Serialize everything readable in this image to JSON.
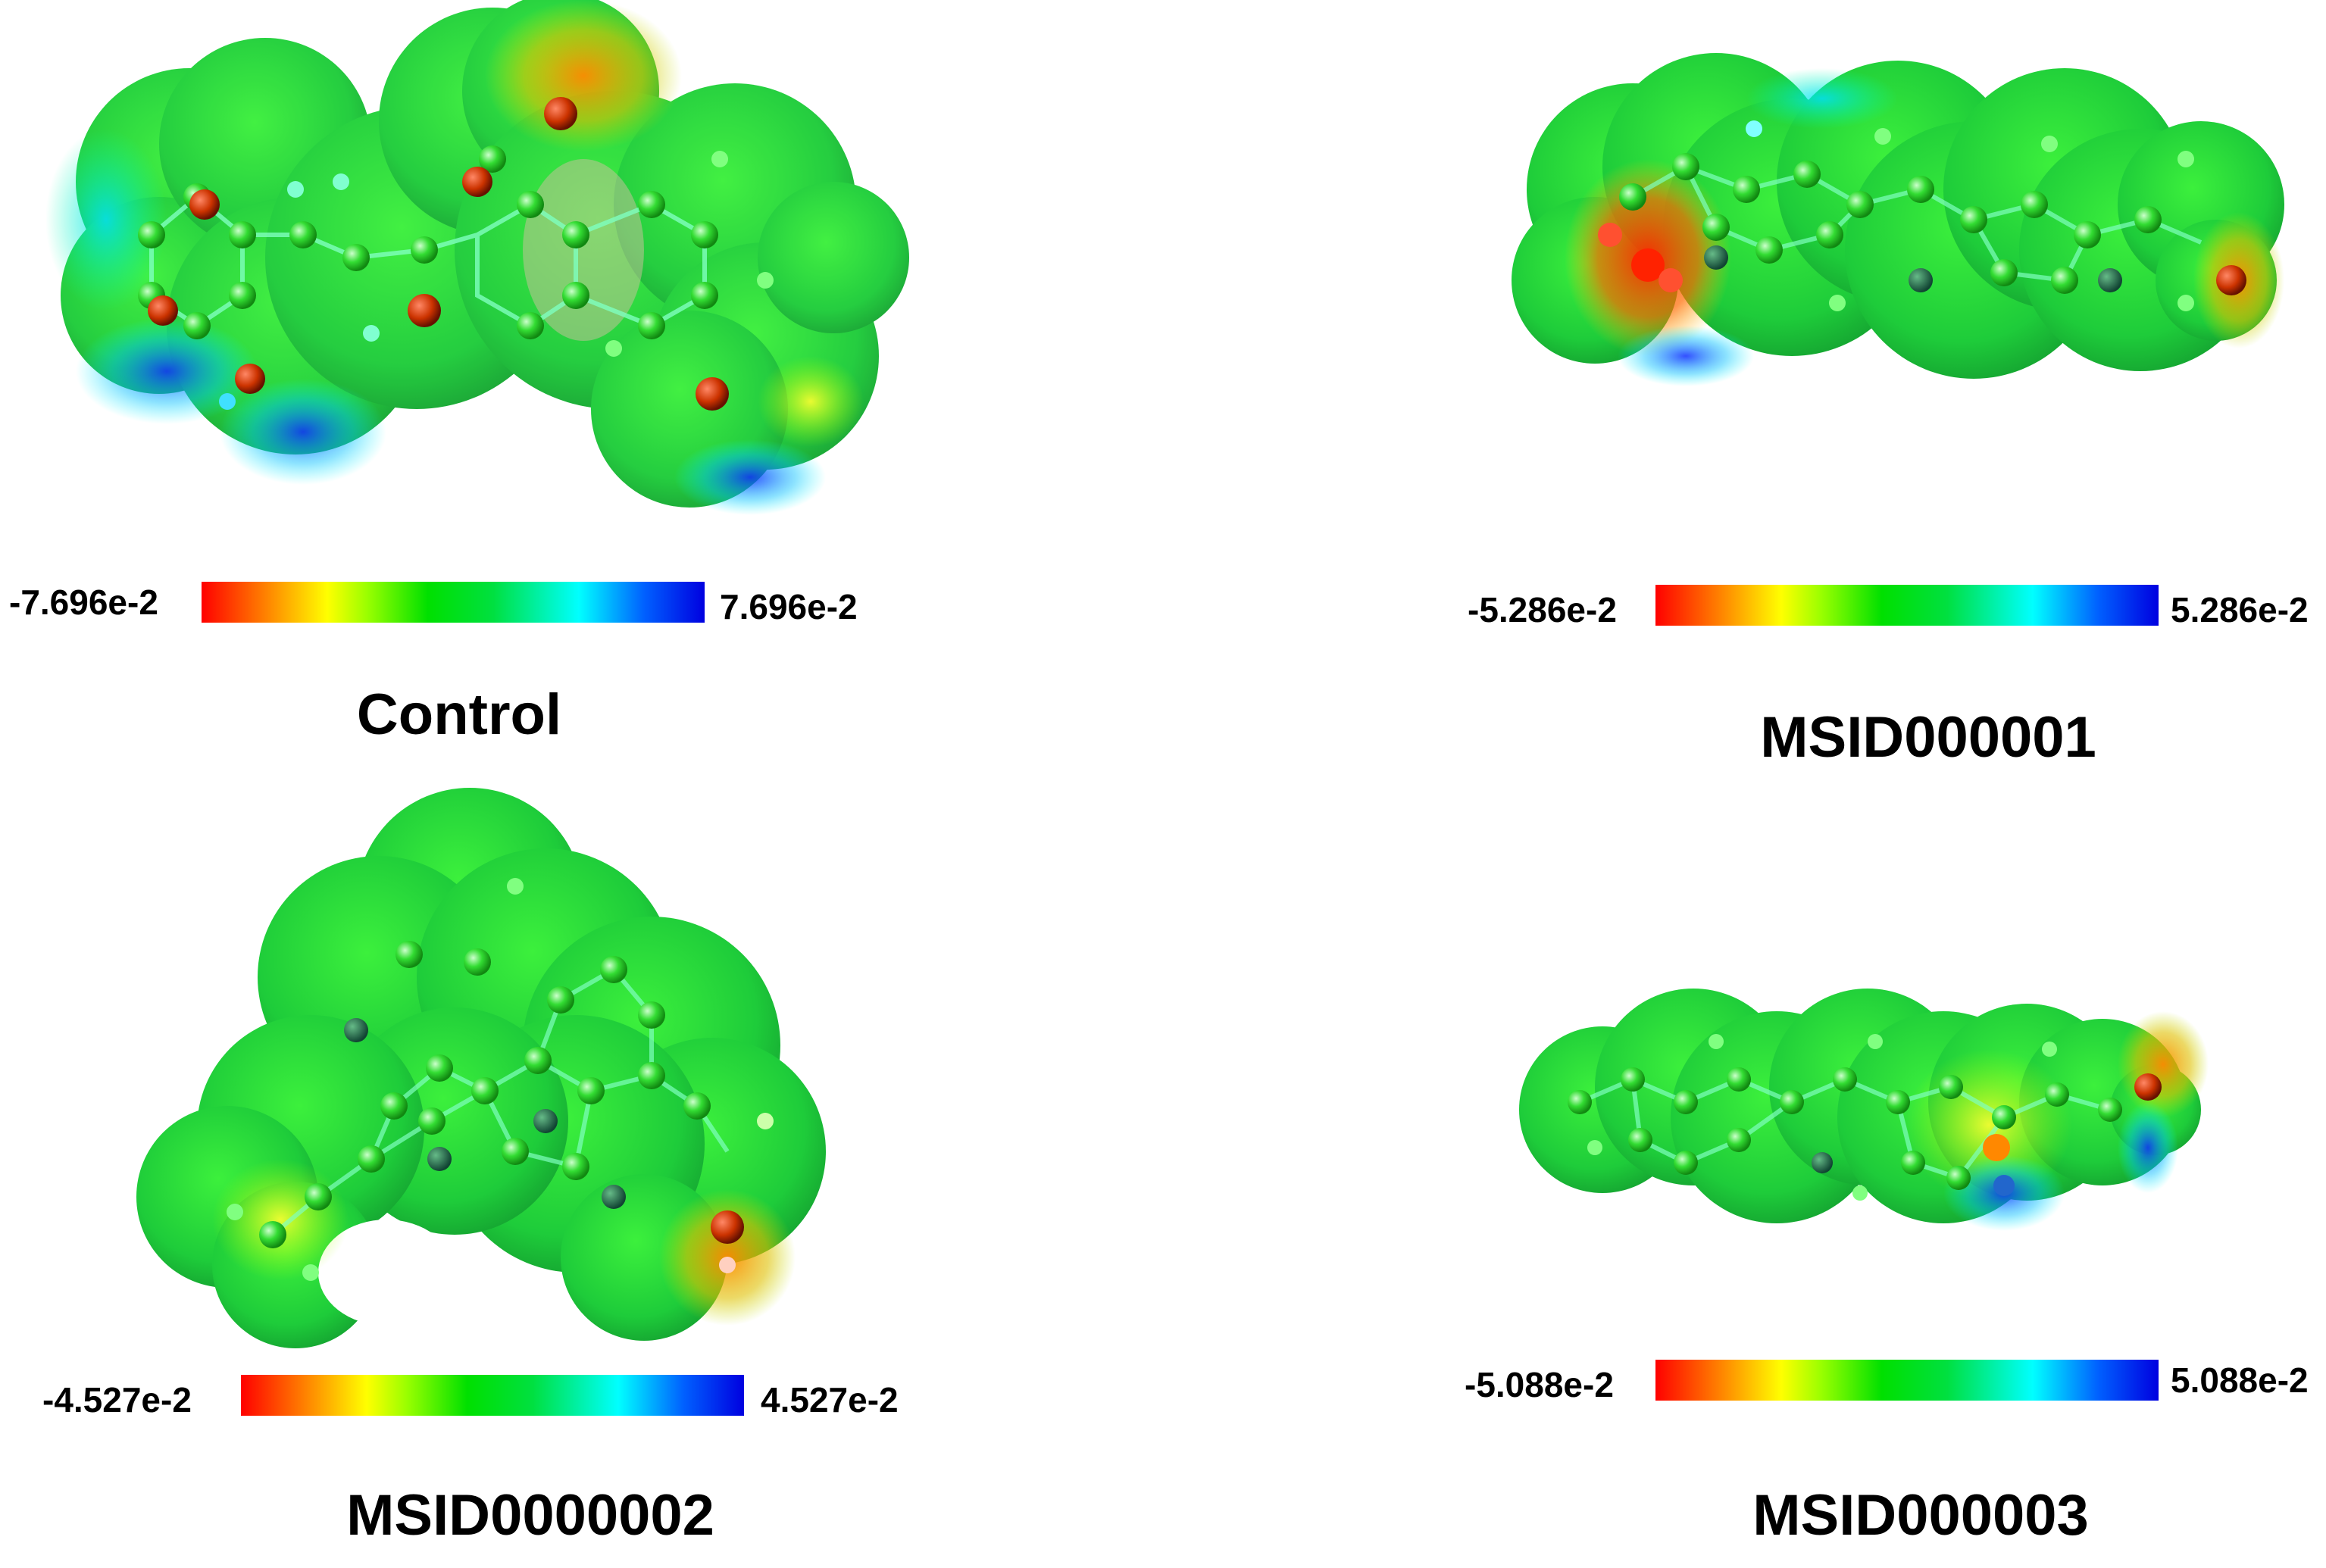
{
  "panels": [
    {
      "title": "Control",
      "scale_min": "-7.696e-2",
      "scale_max": "7.696e-2"
    },
    {
      "title": "MSID000001",
      "scale_min": "-5.286e-2",
      "scale_max": "5.286e-2"
    },
    {
      "title": "MSID0000002",
      "scale_min": "-4.527e-2",
      "scale_max": "4.527e-2"
    },
    {
      "title": "MSID000003",
      "scale_min": "-5.088e-2",
      "scale_max": "5.088e-2"
    }
  ],
  "colors": {
    "negative": "#ff0000",
    "neutral": "#00e000",
    "positive": "#0000e0",
    "atom": "#33e033",
    "oxygen": "#cc3300",
    "hydrogen": "#66ff66"
  }
}
